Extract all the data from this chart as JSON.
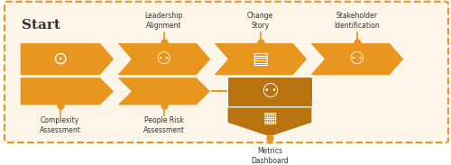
{
  "bg_color": "#ffffff",
  "border_color": "#E8961E",
  "light_bg": "#fdf5e8",
  "orange": "#E8961E",
  "dark_orange": "#B8720E",
  "white": "#ffffff",
  "dark_text": "#333333",
  "start_text": "Start",
  "top_labels": [
    "Leadership\nAlignment",
    "Change\nStory",
    "Stakeholder\nIdentification"
  ],
  "bottom_labels": [
    "Complexity\nAssessment",
    "People Risk\nAssessment"
  ],
  "metrics_label": "Metrics\nDashboard"
}
